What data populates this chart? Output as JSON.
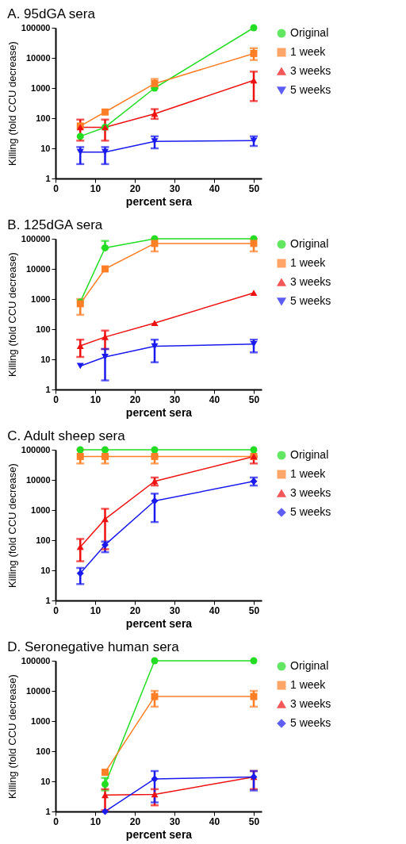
{
  "chart_data": [
    {
      "type": "line",
      "title": "A. 95dGA sera",
      "xlabel": "percent sera",
      "ylabel": "Killing (fold CCU decrease)",
      "x": [
        6.25,
        12.5,
        25,
        50
      ],
      "xlim": [
        0,
        52
      ],
      "xticks": [
        0,
        10,
        20,
        30,
        40,
        50
      ],
      "ylim": [
        1,
        100000
      ],
      "yticks": [
        1,
        10,
        100,
        1000,
        10000,
        100000
      ],
      "log": "y",
      "legend": "right",
      "series": [
        {
          "name": "Original",
          "color": "#22dd22",
          "marker": "circle",
          "values": [
            25,
            50,
            1000,
            100000
          ]
        },
        {
          "name": "1 week",
          "color": "#ff7f27",
          "marker": "square",
          "values": [
            55,
            160,
            1400,
            14000
          ],
          "errors": [
            null,
            null,
            [
              1000,
              2000
            ],
            [
              8500,
              21000
            ]
          ]
        },
        {
          "name": "3 weeks",
          "color": "#ee1111",
          "marker": "triangle",
          "values": [
            50,
            50,
            140,
            1800
          ],
          "errors": [
            [
              18,
              90
            ],
            [
              18,
              90
            ],
            [
              95,
              200
            ],
            [
              370,
              3500
            ]
          ]
        },
        {
          "name": "5 weeks",
          "color": "#1a1aee",
          "marker": "triangle-down",
          "values": [
            7.5,
            7.5,
            17,
            18
          ],
          "errors": [
            [
              3,
              11
            ],
            [
              3,
              11
            ],
            [
              10,
              25
            ],
            [
              12,
              25
            ]
          ]
        }
      ]
    },
    {
      "type": "line",
      "title": "B. 125dGA sera",
      "xlabel": "percent sera",
      "ylabel": "Killing (fold CCU decrease)",
      "x": [
        6.25,
        12.5,
        25,
        50
      ],
      "xlim": [
        0,
        52
      ],
      "xticks": [
        0,
        10,
        20,
        30,
        40,
        50
      ],
      "ylim": [
        1,
        100000
      ],
      "yticks": [
        1,
        10,
        100,
        1000,
        10000,
        100000
      ],
      "log": "y",
      "legend": "right",
      "series": [
        {
          "name": "Original",
          "color": "#22dd22",
          "marker": "circle",
          "values": [
            800,
            50000,
            100000,
            100000
          ],
          "errors": [
            null,
            [
              50000,
              85000
            ],
            null,
            null
          ]
        },
        {
          "name": "1 week",
          "color": "#ff7f27",
          "marker": "square",
          "values": [
            700,
            10000,
            70000,
            70000
          ],
          "errors": [
            [
              300,
              1000
            ],
            null,
            [
              38000,
              100000
            ],
            [
              38000,
              100000
            ]
          ]
        },
        {
          "name": "3 weeks",
          "color": "#ee1111",
          "marker": "triangle",
          "values": [
            28,
            55,
            160,
            1600
          ],
          "errors": [
            [
              12,
              45
            ],
            [
              22,
              90
            ],
            null,
            null
          ]
        },
        {
          "name": "5 weeks",
          "color": "#1a1aee",
          "marker": "triangle-down",
          "values": [
            6,
            12,
            27,
            32
          ],
          "errors": [
            null,
            [
              2,
              22
            ],
            [
              8,
              45
            ],
            [
              17,
              45
            ]
          ]
        }
      ]
    },
    {
      "type": "line",
      "title": "C.  Adult sheep sera",
      "xlabel": "percent sera",
      "ylabel": "Killing (fold CCU decrease)",
      "x": [
        6.25,
        12.5,
        25,
        50
      ],
      "xlim": [
        0,
        52
      ],
      "xticks": [
        0,
        10,
        20,
        30,
        40,
        50
      ],
      "ylim": [
        1,
        100000
      ],
      "yticks": [
        1,
        10,
        100,
        1000,
        10000,
        100000
      ],
      "log": "y",
      "legend": "right",
      "series": [
        {
          "name": "Original",
          "color": "#22dd22",
          "marker": "circle",
          "values": [
            100000,
            100000,
            100000,
            100000
          ]
        },
        {
          "name": "1 week",
          "color": "#ff7f27",
          "marker": "square",
          "values": [
            60000,
            60000,
            60000,
            60000
          ],
          "errors": [
            [
              35000,
              100000
            ],
            [
              35000,
              60000
            ],
            [
              35000,
              60000
            ],
            null
          ]
        },
        {
          "name": "3 weeks",
          "color": "#ee1111",
          "marker": "triangle",
          "values": [
            60,
            500,
            9000,
            60000
          ],
          "errors": [
            [
              20,
              110
            ],
            [
              50,
              1100
            ],
            [
              6500,
              12000
            ],
            [
              35000,
              60000
            ]
          ]
        },
        {
          "name": "5 weeks",
          "color": "#1a1aee",
          "marker": "diamond",
          "values": [
            8,
            70,
            2000,
            9000
          ],
          "errors": [
            [
              3.5,
              12
            ],
            [
              40,
              90
            ],
            [
              400,
              3500
            ],
            [
              6500,
              12000
            ]
          ]
        }
      ]
    },
    {
      "type": "line",
      "title": "D. Seronegative human sera",
      "xlabel": "percent sera",
      "ylabel": "Killing (fold CCU decrease)",
      "x": [
        12.5,
        25,
        50
      ],
      "xlim": [
        0,
        52
      ],
      "xticks": [
        0,
        10,
        20,
        30,
        40,
        50
      ],
      "ylim": [
        1,
        100000
      ],
      "yticks": [
        1,
        10,
        100,
        1000,
        10000,
        100000
      ],
      "log": "y",
      "legend": "right",
      "series": [
        {
          "name": "Original",
          "color": "#22dd22",
          "marker": "circle",
          "values": [
            8,
            100000,
            100000
          ],
          "errors": [
            [
              5,
              13
            ],
            null,
            null
          ]
        },
        {
          "name": "1 week",
          "color": "#ff7f27",
          "marker": "square",
          "values": [
            20,
            6500,
            6500
          ],
          "errors": [
            null,
            [
              3000,
              10000
            ],
            [
              3000,
              10000
            ]
          ]
        },
        {
          "name": "3 weeks",
          "color": "#ee1111",
          "marker": "triangle",
          "values": [
            3.5,
            3.7,
            14
          ],
          "errors": [
            [
              1.1,
              5.5
            ],
            [
              1.6,
              5.5
            ],
            [
              5.5,
              22
            ]
          ]
        },
        {
          "name": "5 weeks",
          "color": "#1a1aee",
          "marker": "diamond",
          "values": [
            1,
            12,
            14
          ],
          "errors": [
            null,
            [
              2,
              22
            ],
            [
              5,
              22
            ]
          ]
        }
      ]
    }
  ]
}
